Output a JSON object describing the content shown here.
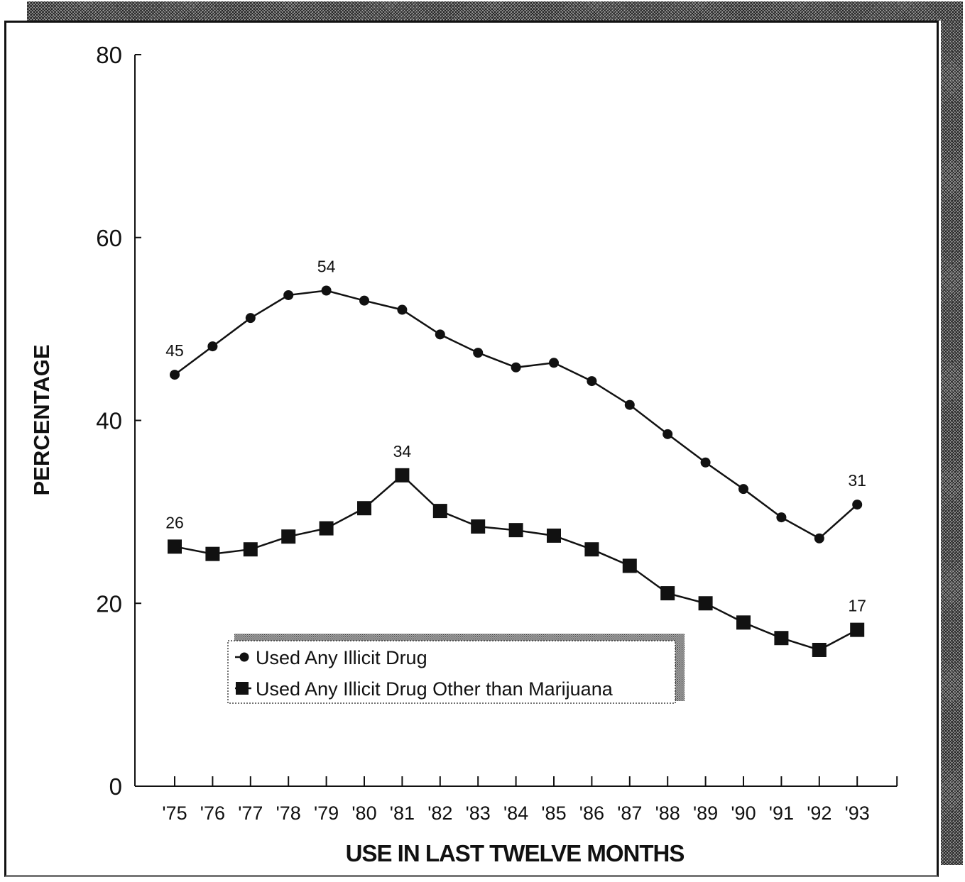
{
  "chart_data": {
    "type": "line",
    "title": "",
    "xlabel": "USE IN LAST TWELVE MONTHS",
    "ylabel": "PERCENTAGE",
    "ylim": [
      0,
      80
    ],
    "yticks": [
      "0",
      "20",
      "40",
      "60",
      "80"
    ],
    "categories": [
      "'75",
      "'76",
      "'77",
      "'78",
      "'79",
      "'80",
      "'81",
      "'82",
      "'83",
      "'84",
      "'85",
      "'86",
      "'87",
      "'88",
      "'89",
      "'90",
      "'91",
      "'92",
      "'93"
    ],
    "series": [
      {
        "name": "Used Any Illicit Drug",
        "marker": "circle",
        "values": [
          45.0,
          48.1,
          51.2,
          53.7,
          54.2,
          53.1,
          52.1,
          49.4,
          47.4,
          45.8,
          46.3,
          44.3,
          41.7,
          38.5,
          35.4,
          32.5,
          29.4,
          27.1,
          30.8
        ],
        "labels": [
          {
            "index": 0,
            "text": "45"
          },
          {
            "index": 4,
            "text": "54"
          },
          {
            "index": 18,
            "text": "31"
          }
        ]
      },
      {
        "name": "Used Any Illicit Drug Other than Marijuana",
        "marker": "square",
        "values": [
          26.2,
          25.4,
          25.9,
          27.3,
          28.2,
          30.4,
          34.0,
          30.1,
          28.4,
          28.0,
          27.4,
          25.9,
          24.1,
          21.1,
          20.0,
          17.9,
          16.2,
          14.9,
          17.1
        ],
        "labels": [
          {
            "index": 0,
            "text": "26"
          },
          {
            "index": 6,
            "text": "34"
          },
          {
            "index": 18,
            "text": "17"
          }
        ]
      }
    ],
    "legend": {
      "position": "bottom-left",
      "entries": [
        "Used Any Illicit Drug",
        "Used Any Illicit Drug Other than Marijuana"
      ]
    },
    "grid": false
  }
}
